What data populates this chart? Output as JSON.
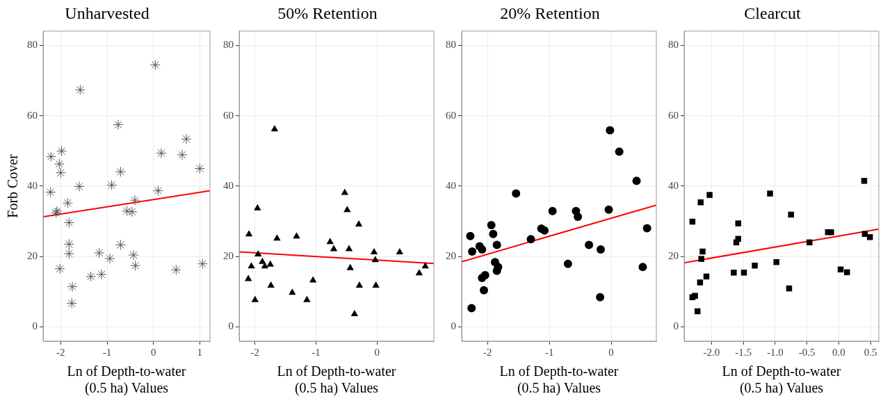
{
  "chart_data": [
    {
      "type": "scatter",
      "title": "Unharvested",
      "xlabel": "Ln of Depth-to-water\n(0.5 ha) Values",
      "ylabel": "Forb Cover",
      "xlim": [
        -2.38,
        1.22
      ],
      "xticks": [
        -2,
        -1,
        0,
        1
      ],
      "ylim": [
        -4.1,
        84.1
      ],
      "yticks": [
        0,
        20,
        40,
        60,
        80
      ],
      "grid": true,
      "marker": "cross",
      "series": [
        {
          "color": "#555555",
          "x": [
            0.04,
            -1.58,
            -0.76,
            0.71,
            0.17,
            0.62,
            -2.21,
            -1.98,
            -2.03,
            -2.0,
            -0.71,
            1.0,
            -2.22,
            -1.6,
            -0.9,
            0.1,
            -0.4,
            -1.85,
            -2.08,
            -2.1,
            -0.57,
            -0.46,
            -1.82,
            -1.82,
            -0.71,
            -1.82,
            -1.17,
            -0.43,
            -0.94,
            -2.02,
            -0.39,
            0.49,
            1.06,
            -1.35,
            -1.12,
            -1.75,
            -1.76
          ],
          "values": [
            74.5,
            67.4,
            57.5,
            53.4,
            49.4,
            48.9,
            48.4,
            50.0,
            46.3,
            43.8,
            44.1,
            45.0,
            38.3,
            39.9,
            40.3,
            38.7,
            36.0,
            35.2,
            32.9,
            32.4,
            32.9,
            32.7,
            29.6,
            23.5,
            23.3,
            20.8,
            21.0,
            20.4,
            19.4,
            16.5,
            17.4,
            16.2,
            17.9,
            14.3,
            14.9,
            11.4,
            6.7
          ]
        },
        {
          "type": "line",
          "marker": "none",
          "color": "#ff0000",
          "x": [
            -2.38,
            1.22
          ],
          "values": [
            31.3,
            38.7
          ]
        }
      ]
    },
    {
      "type": "scatter",
      "title": "50% Retention",
      "xlabel": "Ln of Depth-to-water\n(0.5 ha) Values",
      "xlim": [
        -2.26,
        0.93
      ],
      "xticks": [
        -2,
        -1,
        0
      ],
      "ylim": [
        -4.1,
        84.1
      ],
      "yticks": [
        0,
        20,
        40,
        60,
        80
      ],
      "grid": true,
      "marker": "triangle",
      "series": [
        {
          "color": "#000000",
          "x": [
            -1.68,
            -1.96,
            -2.1,
            -1.64,
            -1.32,
            -0.53,
            -0.49,
            -0.3,
            -0.77,
            -0.71,
            -0.46,
            -0.05,
            0.37,
            -0.03,
            -1.95,
            -1.88,
            -2.06,
            -1.84,
            -1.75,
            -2.11,
            -1.74,
            -1.05,
            -0.44,
            -0.29,
            -0.02,
            0.69,
            0.79,
            -1.39,
            -1.15,
            -2.0,
            -0.37
          ],
          "values": [
            56.2,
            33.7,
            26.3,
            25.1,
            25.7,
            38.1,
            33.2,
            29.1,
            24.1,
            22.1,
            22.1,
            21.2,
            21.2,
            19.0,
            20.6,
            18.5,
            17.2,
            17.2,
            17.7,
            13.6,
            11.7,
            13.2,
            16.7,
            11.7,
            11.7,
            15.2,
            17.2,
            9.7,
            7.6,
            7.6,
            3.6
          ]
        },
        {
          "type": "line",
          "marker": "none",
          "color": "#ff0000",
          "x": [
            -2.26,
            0.93
          ],
          "values": [
            21.3,
            18.0
          ]
        }
      ]
    },
    {
      "type": "scatter",
      "title": "20% Retention",
      "xlabel": "Ln of Depth-to-water\n(0.5 ha) Values",
      "xlim": [
        -2.42,
        0.73
      ],
      "xticks": [
        -2,
        -1,
        0
      ],
      "ylim": [
        -4.1,
        84.1
      ],
      "yticks": [
        0,
        20,
        40,
        60,
        80
      ],
      "grid": true,
      "marker": "circle",
      "series": [
        {
          "color": "#000000",
          "x": [
            -0.02,
            0.13,
            0.41,
            -1.54,
            -0.95,
            -0.04,
            -0.57,
            -0.54,
            -1.94,
            0.58,
            -1.91,
            -2.28,
            -1.13,
            -1.08,
            -1.3,
            -1.85,
            -0.36,
            -2.13,
            -2.09,
            -0.17,
            -2.25,
            -0.7,
            -1.88,
            -1.83,
            -1.85,
            0.51,
            -2.04,
            -2.09,
            -2.06,
            -0.18,
            -2.26
          ],
          "values": [
            55.9,
            49.8,
            41.5,
            37.9,
            32.9,
            33.3,
            32.9,
            31.3,
            28.9,
            28.0,
            26.4,
            25.8,
            27.9,
            27.4,
            24.9,
            23.3,
            23.3,
            22.9,
            22.0,
            22.0,
            21.4,
            17.9,
            18.4,
            17.0,
            15.9,
            17.0,
            14.7,
            13.9,
            10.4,
            8.4,
            5.3
          ]
        },
        {
          "type": "line",
          "marker": "none",
          "color": "#ff0000",
          "x": [
            -2.42,
            0.73
          ],
          "values": [
            18.5,
            34.6
          ]
        }
      ]
    },
    {
      "type": "scatter",
      "title": "Clearcut",
      "xlabel": "Ln of Depth-to-water\n(0.5 ha) Values",
      "xlim": [
        -2.43,
        0.63
      ],
      "xticks": [
        {
          "value": -2,
          "label": "-2.0"
        },
        {
          "value": -1.5,
          "label": "-1.5"
        },
        {
          "value": -1,
          "label": "-1.0"
        },
        {
          "value": -0.5,
          "label": "-0.5"
        },
        {
          "value": 0,
          "label": "0.0"
        },
        {
          "value": 0.5,
          "label": "0.5"
        }
      ],
      "ylim": [
        -4.1,
        84.1
      ],
      "yticks": [
        0,
        20,
        40,
        60,
        80
      ],
      "grid": true,
      "marker": "square",
      "series": [
        {
          "color": "#000000",
          "x": [
            0.4,
            -1.08,
            -2.03,
            -2.17,
            -0.75,
            -2.3,
            -1.58,
            -0.17,
            -0.12,
            0.41,
            0.49,
            -1.58,
            -1.61,
            -0.46,
            -2.14,
            -2.16,
            -0.98,
            -1.32,
            0.03,
            0.13,
            -1.65,
            -1.49,
            -2.08,
            -2.18,
            -0.78,
            -2.3,
            -2.26,
            -2.22
          ],
          "values": [
            41.5,
            37.9,
            37.5,
            35.4,
            31.9,
            29.9,
            29.4,
            26.9,
            26.9,
            26.4,
            25.5,
            25.0,
            24.0,
            24.0,
            21.4,
            19.3,
            18.4,
            17.4,
            16.3,
            15.5,
            15.4,
            15.4,
            14.3,
            12.6,
            10.9,
            8.4,
            8.8,
            4.4
          ]
        },
        {
          "type": "line",
          "marker": "none",
          "color": "#ff0000",
          "x": [
            -2.43,
            0.63
          ],
          "values": [
            18.2,
            27.8
          ]
        }
      ]
    }
  ]
}
